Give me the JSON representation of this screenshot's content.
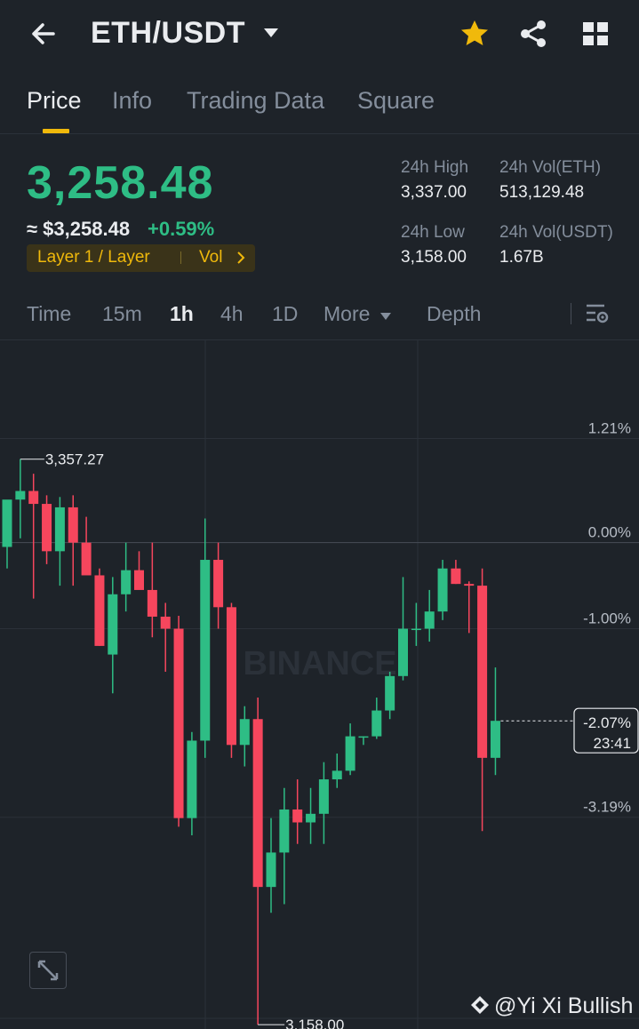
{
  "header": {
    "pair": "ETH/USDT",
    "icons": {
      "back": "back-arrow-icon",
      "caret": "caret-down-icon",
      "favorite": "star-icon",
      "share": "share-icon",
      "menu": "grid-icon"
    },
    "favorite_color": "#f0b90b"
  },
  "tabs": [
    {
      "label": "Price",
      "active": true
    },
    {
      "label": "Info"
    },
    {
      "label": "Trading Data"
    },
    {
      "label": "Square"
    }
  ],
  "ticker": {
    "last_price": "3,258.48",
    "fiat_price": "≈ $3,258.48",
    "change_pct": "+0.59%",
    "tags": [
      "Layer 1 / Layer",
      "Vol"
    ],
    "stats": {
      "high_label": "24h High",
      "high": "3,337.00",
      "vol_base_label": "24h Vol(ETH)",
      "vol_base": "513,129.48",
      "low_label": "24h Low",
      "low": "3,158.00",
      "vol_quote_label": "24h Vol(USDT)",
      "vol_quote": "1.67B"
    },
    "up_color": "#2ebd85",
    "down_color": "#f6465d"
  },
  "timeframes": {
    "items": [
      "Time",
      "15m",
      "1h",
      "4h",
      "1D",
      "More"
    ],
    "active": "1h",
    "depth_label": "Depth",
    "settings_icon": "chart-settings-icon"
  },
  "chart_data": {
    "type": "candlestick",
    "interval": "1h",
    "y_axis_type": "percent change",
    "y_tick_labels": [
      "1.21%",
      "0.00%",
      "-1.00%",
      "-2.07%",
      "-3.19%"
    ],
    "y_range_pct": [
      -5.65,
      2.35
    ],
    "high_marker": "3,357.27",
    "low_marker": "3,158.00",
    "current_pct_label": "-2.07%",
    "countdown": "23:41",
    "watermark": "BINANCE",
    "candles_pct": [
      {
        "o": -0.05,
        "h": 0.4,
        "l": -0.3,
        "c": 0.5
      },
      {
        "o": 0.5,
        "h": 0.97,
        "l": 0.05,
        "c": 0.6
      },
      {
        "o": 0.6,
        "h": 0.8,
        "l": -0.65,
        "c": 0.45
      },
      {
        "o": 0.45,
        "h": 0.55,
        "l": -0.25,
        "c": -0.1
      },
      {
        "o": -0.1,
        "h": 0.53,
        "l": -0.5,
        "c": 0.41
      },
      {
        "o": 0.41,
        "h": 0.55,
        "l": -0.5,
        "c": 0.0
      },
      {
        "o": 0.0,
        "h": 0.3,
        "l": -0.35,
        "c": -0.38
      },
      {
        "o": -0.38,
        "h": -0.3,
        "l": -1.2,
        "c": -1.2
      },
      {
        "o": -1.3,
        "h": -0.4,
        "l": -1.75,
        "c": -0.6
      },
      {
        "o": -0.6,
        "h": 0.0,
        "l": -0.8,
        "c": -0.32
      },
      {
        "o": -0.32,
        "h": -0.1,
        "l": -0.45,
        "c": -0.55
      },
      {
        "o": -0.55,
        "h": 0.0,
        "l": -1.1,
        "c": -0.86
      },
      {
        "o": -0.86,
        "h": -0.7,
        "l": -1.5,
        "c": -1.0
      },
      {
        "o": -1.0,
        "h": -0.85,
        "l": -3.3,
        "c": -3.2
      },
      {
        "o": -3.2,
        "h": -2.2,
        "l": -3.4,
        "c": -2.3
      },
      {
        "o": -2.3,
        "h": 0.28,
        "l": -2.5,
        "c": -0.2
      },
      {
        "o": -0.2,
        "h": 0.0,
        "l": -1.0,
        "c": -0.75
      },
      {
        "o": -0.75,
        "h": -0.7,
        "l": -2.5,
        "c": -2.35
      },
      {
        "o": -2.35,
        "h": -1.9,
        "l": -2.6,
        "c": -2.05
      },
      {
        "o": -2.05,
        "h": -1.8,
        "l": -5.6,
        "c": -4.0
      },
      {
        "o": -4.0,
        "h": -3.2,
        "l": -4.3,
        "c": -3.6
      },
      {
        "o": -3.6,
        "h": -2.85,
        "l": -4.2,
        "c": -3.1
      },
      {
        "o": -3.1,
        "h": -2.75,
        "l": -3.5,
        "c": -3.25
      },
      {
        "o": -3.25,
        "h": -2.85,
        "l": -3.5,
        "c": -3.15
      },
      {
        "o": -3.15,
        "h": -2.55,
        "l": -3.5,
        "c": -2.75
      },
      {
        "o": -2.75,
        "h": -2.45,
        "l": -2.85,
        "c": -2.65
      },
      {
        "o": -2.65,
        "h": -2.1,
        "l": -2.7,
        "c": -2.25
      },
      {
        "o": -2.25,
        "h": -2.25,
        "l": -2.35,
        "c": -2.25
      },
      {
        "o": -2.25,
        "h": -1.8,
        "l": -2.28,
        "c": -1.95
      },
      {
        "o": -1.95,
        "h": -1.5,
        "l": -2.05,
        "c": -1.55
      },
      {
        "o": -1.55,
        "h": -0.4,
        "l": -1.6,
        "c": -1.0
      },
      {
        "o": -1.0,
        "h": -0.7,
        "l": -1.2,
        "c": -1.0
      },
      {
        "o": -1.0,
        "h": -0.55,
        "l": -1.15,
        "c": -0.8
      },
      {
        "o": -0.8,
        "h": -0.2,
        "l": -0.9,
        "c": -0.3
      },
      {
        "o": -0.3,
        "h": -0.2,
        "l": -0.48,
        "c": -0.48
      },
      {
        "o": -0.48,
        "h": -0.45,
        "l": -1.05,
        "c": -0.5
      },
      {
        "o": -0.5,
        "h": -0.3,
        "l": -3.35,
        "c": -2.5
      },
      {
        "o": -2.5,
        "h": -1.45,
        "l": -2.7,
        "c": -2.07
      }
    ]
  },
  "footer": {
    "expand_icon": "expand-icon",
    "watermark_text": "@Yi Xi Bullish"
  }
}
